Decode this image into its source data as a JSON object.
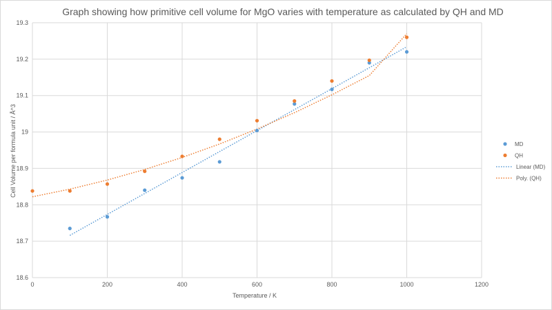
{
  "chart_data": {
    "type": "scatter",
    "title": "Graph showing how primitive cell volume for MgO varies with temperature as calculated by QH and MD",
    "xlabel": "Temperature  / K",
    "ylabel": "Cell Volume per formula unit / Å^3",
    "xlim": [
      0,
      1200
    ],
    "ylim": [
      18.6,
      19.3
    ],
    "xticks": [
      0,
      200,
      400,
      600,
      800,
      1000,
      1200
    ],
    "yticks": [
      18.6,
      18.7,
      18.8,
      18.9,
      19,
      19.1,
      19.2,
      19.3
    ],
    "xtick_labels": [
      "0",
      "200",
      "400",
      "600",
      "800",
      "1000",
      "1200"
    ],
    "ytick_labels": [
      "18.6",
      "18.7",
      "18.8",
      "18.9",
      "19",
      "19.1",
      "19.2",
      "19.3"
    ],
    "grid": {
      "horizontal": true,
      "vertical": true
    },
    "legend_position": "right",
    "series": [
      {
        "name": "MD",
        "kind": "points",
        "color": "#5b9bd5",
        "x": [
          100,
          200,
          300,
          400,
          500,
          600,
          700,
          800,
          900,
          1000
        ],
        "y": [
          18.735,
          18.767,
          18.84,
          18.874,
          18.918,
          19.004,
          19.077,
          19.117,
          19.19,
          19.22
        ]
      },
      {
        "name": "QH",
        "kind": "points",
        "color": "#ed7d31",
        "x": [
          0,
          100,
          200,
          300,
          400,
          500,
          600,
          700,
          800,
          900,
          1000
        ],
        "y": [
          18.838,
          18.838,
          18.857,
          18.892,
          18.933,
          18.98,
          19.031,
          19.085,
          19.14,
          19.197,
          19.26
        ]
      },
      {
        "name": "Linear (MD)",
        "kind": "trendline",
        "color": "#5b9bd5",
        "x": [
          100,
          1000
        ],
        "y": [
          18.716,
          19.234
        ]
      },
      {
        "name": "Poly. (QH)",
        "kind": "trendline",
        "color": "#ed7d31",
        "x": [
          0,
          100,
          200,
          300,
          400,
          500,
          600,
          700,
          800,
          900,
          1000
        ],
        "y": [
          18.822,
          18.843,
          18.868,
          18.897,
          18.93,
          18.967,
          19.008,
          19.053,
          19.102,
          19.155,
          19.27
        ]
      }
    ]
  }
}
